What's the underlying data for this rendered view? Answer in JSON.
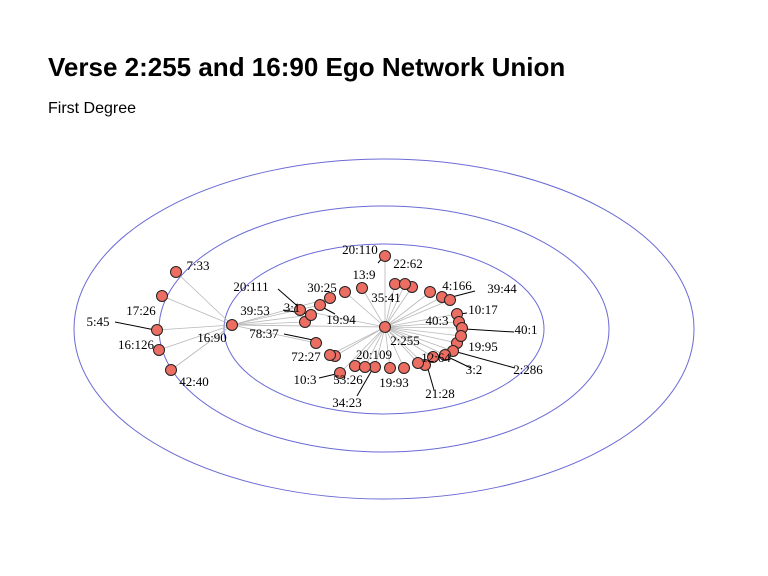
{
  "title": "Verse 2:255 and 16:90 Ego Network Union",
  "subtitle": "First Degree",
  "colors": {
    "node_fill": "#ec6d62",
    "ring_stroke": "#6b6bd6",
    "edge_stroke": "#b8b8b8"
  },
  "network": {
    "egos": [
      "2:255",
      "16:90"
    ],
    "neighbors_of_16_90": [
      "7:33",
      "17:26",
      "5:45",
      "16:126",
      "42:40",
      "39:53",
      "78:37",
      "3:1",
      "30:25",
      "19:94"
    ],
    "neighbors_of_2_255": [
      "20:110",
      "13:9",
      "22:62",
      "35:41",
      "4:166",
      "39:44",
      "10:17",
      "40:3",
      "40:1",
      "19:95",
      "2:286",
      "3:2",
      "12:64",
      "21:28",
      "19:93",
      "34:23",
      "53:26",
      "20:109",
      "72:27",
      "10:3",
      "20:111"
    ]
  }
}
